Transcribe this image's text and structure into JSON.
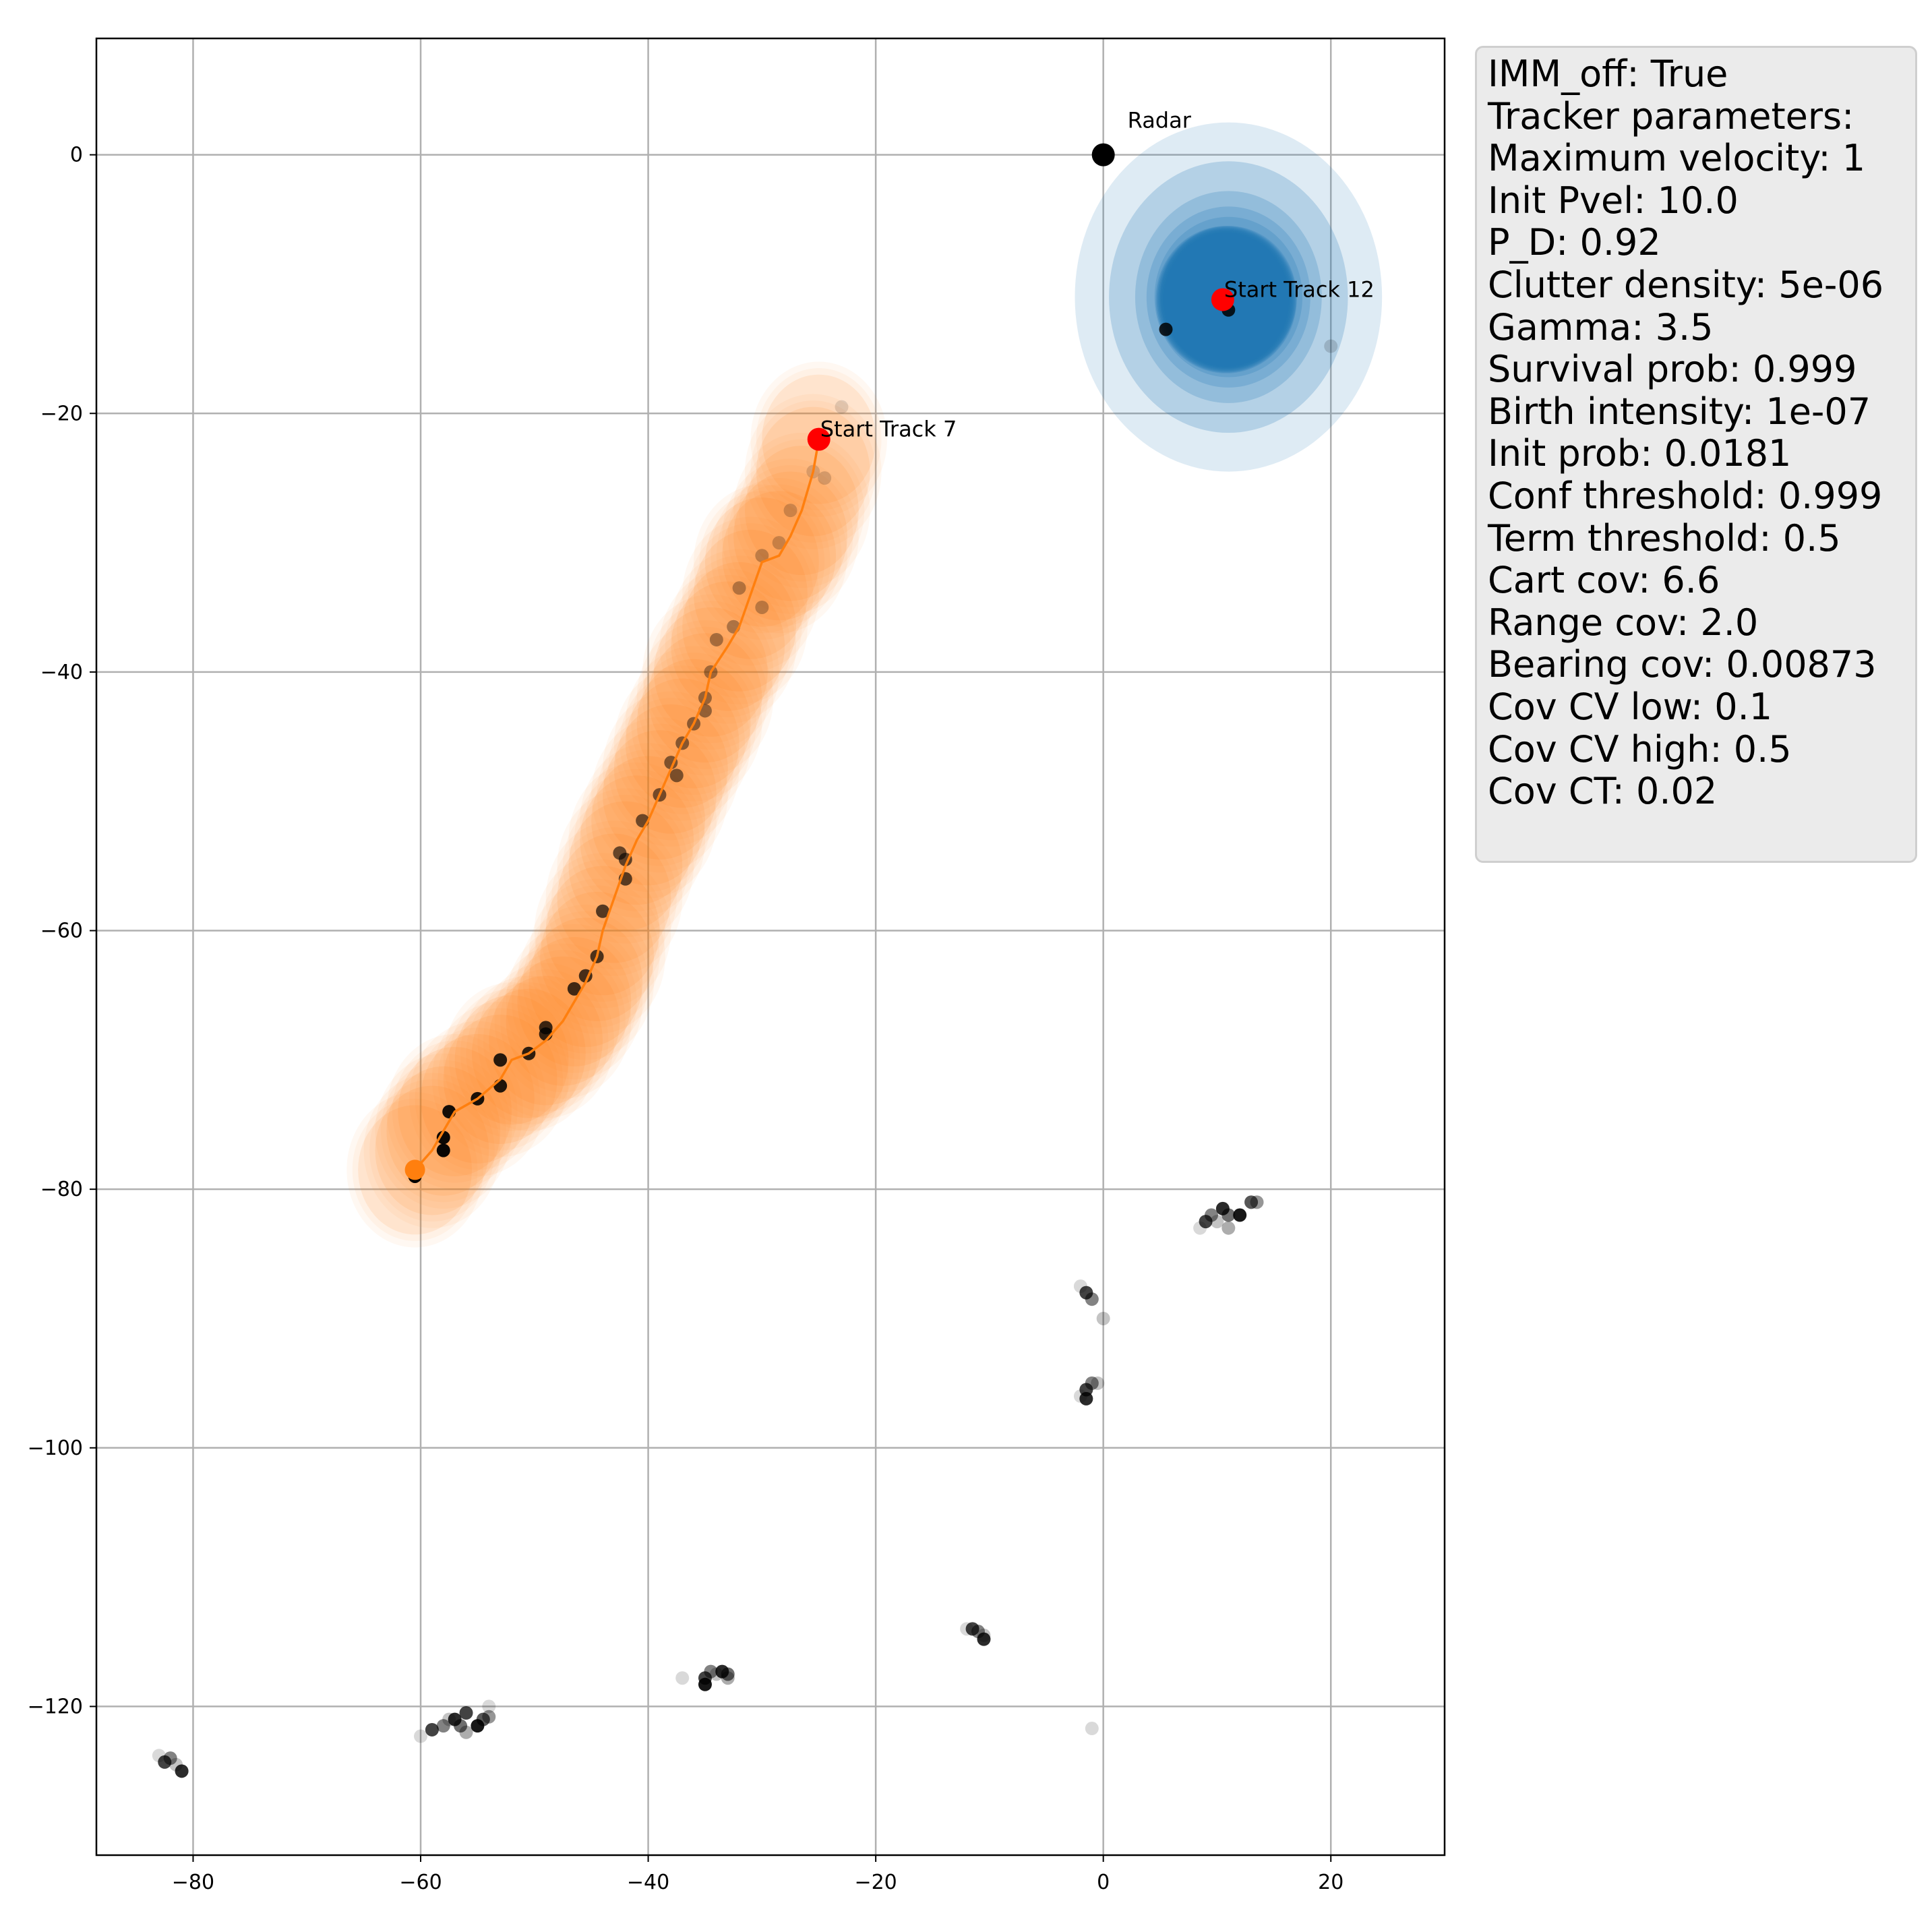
{
  "chart_data": {
    "type": "scatter",
    "title": "",
    "xlabel": "",
    "ylabel": "",
    "xlim": [
      -88.5,
      30
    ],
    "ylim": [
      -131.5,
      9
    ],
    "x_ticks": [
      -80,
      -60,
      -40,
      -20,
      0,
      20
    ],
    "y_ticks": [
      0,
      -20,
      -40,
      -60,
      -80,
      -100,
      -120
    ],
    "x_tick_labels": [
      "−80",
      "−60",
      "−40",
      "−20",
      "0",
      "20"
    ],
    "y_tick_labels": [
      "0",
      "−20",
      "−40",
      "−60",
      "−80",
      "−100",
      "−120"
    ],
    "grid": true,
    "colors": {
      "track7": "#ff7f0e",
      "track12": "#1f77b4",
      "start_marker": "#ff0000",
      "radar": "#000000",
      "measurement": "#000000"
    },
    "radar": {
      "label": "Radar",
      "x": 0,
      "y": 0
    },
    "tracks": [
      {
        "id": 7,
        "start_label": "Start Track 7",
        "start": [
          -25,
          -22
        ],
        "end": [
          -60.5,
          -78.5
        ],
        "trajectory": [
          [
            -25,
            -22
          ],
          [
            -25.5,
            -24.5
          ],
          [
            -26.5,
            -27.5
          ],
          [
            -27.5,
            -29.5
          ],
          [
            -28.5,
            -31
          ],
          [
            -30,
            -31.5
          ],
          [
            -31,
            -34
          ],
          [
            -32,
            -36.5
          ],
          [
            -33,
            -38
          ],
          [
            -34.5,
            -40
          ],
          [
            -35,
            -42
          ],
          [
            -36,
            -44
          ],
          [
            -37,
            -45.5
          ],
          [
            -38,
            -47.5
          ],
          [
            -39,
            -49.5
          ],
          [
            -40,
            -51.5
          ],
          [
            -41,
            -53
          ],
          [
            -42,
            -55
          ],
          [
            -43,
            -57.5
          ],
          [
            -44,
            -60
          ],
          [
            -44.5,
            -62
          ],
          [
            -45.5,
            -64
          ],
          [
            -46.5,
            -65.5
          ],
          [
            -47.5,
            -67
          ],
          [
            -49,
            -68.5
          ],
          [
            -50.5,
            -69.5
          ],
          [
            -52,
            -70
          ],
          [
            -53,
            -71.5
          ],
          [
            -55,
            -73
          ],
          [
            -57,
            -74
          ],
          [
            -58,
            -75.5
          ],
          [
            -59,
            -77
          ],
          [
            -60.5,
            -78.5
          ]
        ],
        "covariance_radii": [
          6,
          5.5,
          5,
          5
        ],
        "measurements": [
          [
            -23,
            -19.5
          ],
          [
            -25.5,
            -24.5
          ],
          [
            -24.5,
            -25
          ],
          [
            -27.5,
            -27.5
          ],
          [
            -28.5,
            -30
          ],
          [
            -30,
            -31
          ],
          [
            -30,
            -35
          ],
          [
            -32,
            -33.5
          ],
          [
            -32.5,
            -36.5
          ],
          [
            -34,
            -37.5
          ],
          [
            -34.5,
            -40
          ],
          [
            -35,
            -42
          ],
          [
            -35,
            -43
          ],
          [
            -36,
            -44
          ],
          [
            -37,
            -45.5
          ],
          [
            -38,
            -47
          ],
          [
            -37.5,
            -48
          ],
          [
            -39,
            -49.5
          ],
          [
            -40.5,
            -51.5
          ],
          [
            -42.5,
            -54
          ],
          [
            -42,
            -54.5
          ],
          [
            -42,
            -56
          ],
          [
            -44,
            -58.5
          ],
          [
            -44.5,
            -62
          ],
          [
            -45.5,
            -63.5
          ],
          [
            -46.5,
            -64.5
          ],
          [
            -49,
            -67.5
          ],
          [
            -49,
            -68
          ],
          [
            -50.5,
            -69.5
          ],
          [
            -53,
            -70
          ],
          [
            -53,
            -72
          ],
          [
            -55,
            -73
          ],
          [
            -57.5,
            -74
          ],
          [
            -58,
            -76
          ],
          [
            -58,
            -77
          ],
          [
            -60.5,
            -79
          ]
        ]
      },
      {
        "id": 12,
        "start_label": "Start Track 12",
        "start": [
          10.5,
          -11.2
        ],
        "end": [
          10.5,
          -11.2
        ],
        "covariance_ellipses": [
          [
            11,
            -11,
            13.5,
            13.5
          ],
          [
            11,
            -11,
            10.5,
            10.5
          ],
          [
            11,
            -11,
            8.2,
            8.2
          ],
          [
            11,
            -11,
            7.2,
            7.0
          ],
          [
            11,
            -11,
            6.5,
            6.2
          ],
          [
            11,
            -11,
            6.0,
            5.5
          ]
        ],
        "measurements": [
          [
            5.5,
            -13.5
          ],
          [
            11,
            -12
          ],
          [
            20,
            -14.8
          ]
        ]
      }
    ],
    "clutter_clusters": [
      [
        [
          8.5,
          -83
        ],
        [
          9,
          -82.5
        ],
        [
          9.5,
          -82
        ],
        [
          10,
          -82.5
        ],
        [
          10.5,
          -81.5
        ],
        [
          11,
          -82
        ],
        [
          11,
          -83
        ],
        [
          12,
          -82
        ],
        [
          13,
          -81
        ],
        [
          13.5,
          -81
        ]
      ],
      [
        [
          -2,
          -87.5
        ],
        [
          -1.5,
          -88
        ],
        [
          -1,
          -88.5
        ],
        [
          0,
          -90
        ]
      ],
      [
        [
          -2,
          -96
        ],
        [
          -1.5,
          -95.5
        ],
        [
          -1,
          -95
        ],
        [
          -0.5,
          -95
        ],
        [
          -1.5,
          -96.2
        ]
      ],
      [
        [
          -12,
          -114
        ],
        [
          -11.5,
          -114
        ],
        [
          -11,
          -114.2
        ],
        [
          -10.5,
          -114.5
        ],
        [
          -10.5,
          -114.8
        ]
      ],
      [
        [
          -37,
          -117.8
        ],
        [
          -35,
          -117.8
        ],
        [
          -34.5,
          -117.3
        ],
        [
          -34,
          -117.5
        ],
        [
          -33.5,
          -117.3
        ],
        [
          -33,
          -117.5
        ],
        [
          -33,
          -117.8
        ],
        [
          -35,
          -118.3
        ]
      ],
      [
        [
          -60,
          -122.3
        ],
        [
          -59,
          -121.8
        ],
        [
          -58,
          -121.5
        ],
        [
          -57.5,
          -121
        ],
        [
          -57,
          -121
        ],
        [
          -56.5,
          -121.5
        ],
        [
          -56,
          -122
        ],
        [
          -55,
          -121.5
        ],
        [
          -54.5,
          -121
        ],
        [
          -54,
          -120.8
        ],
        [
          -54,
          -120
        ],
        [
          -56,
          -120.5
        ]
      ],
      [
        [
          -83,
          -123.8
        ],
        [
          -82.5,
          -124.3
        ],
        [
          -82,
          -124
        ],
        [
          -81.5,
          -124.5
        ],
        [
          -81,
          -125
        ]
      ],
      [
        [
          -1,
          -121.7
        ]
      ]
    ]
  },
  "info_box": {
    "lines": [
      "IMM_off: True",
      "Tracker parameters:",
      "Maximum velocity: 1",
      "Init Pvel: 10.0",
      "P_D: 0.92",
      "Clutter density: 5e-06",
      "Gamma: 3.5",
      "Survival prob: 0.999",
      "Birth intensity: 1e-07",
      "Init prob: 0.0181",
      "Conf threshold: 0.999",
      "Term threshold: 0.5",
      "Cart cov: 6.6",
      "Range cov: 2.0",
      "Bearing cov: 0.00873",
      "Cov CV low: 0.1",
      "Cov CV high: 0.5",
      "Cov CT: 0.02"
    ]
  }
}
